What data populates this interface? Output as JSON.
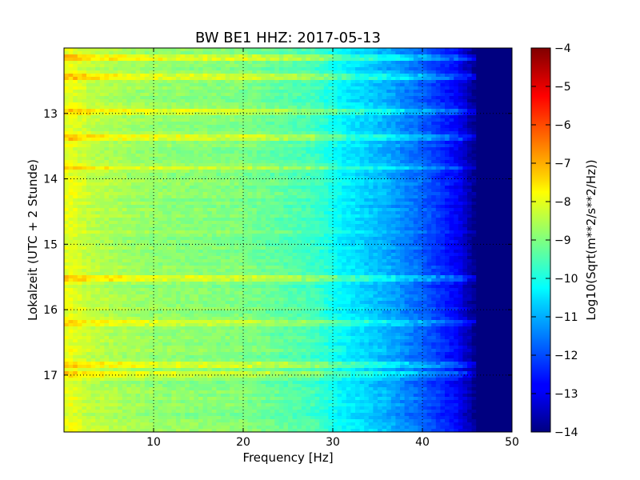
{
  "chart_data": {
    "type": "heatmap",
    "title": "BW BE1 HHZ: 2017-05-13",
    "xlabel": "Frequency [Hz]",
    "ylabel": "Lokalzeit (UTC + 2 Stunde)",
    "colorbar_label": "Log10(Sqrt(m**2/s**2/Hz))",
    "xlim": [
      0,
      50
    ],
    "ylim": [
      12.0,
      17.87
    ],
    "y_inverted": true,
    "xticks": [
      10,
      20,
      30,
      40,
      50
    ],
    "yticks": [
      13,
      14,
      15,
      16,
      17
    ],
    "colorbar_range": [
      -14,
      -4
    ],
    "colorbar_ticks": [
      -4,
      -5,
      -6,
      -7,
      -8,
      -9,
      -10,
      -11,
      -12,
      -13,
      -14
    ],
    "colormap": "jet",
    "grid": true,
    "typical_levels": [
      {
        "frequency": 1,
        "value": -8.0
      },
      {
        "frequency": 3,
        "value": -8.4
      },
      {
        "frequency": 10,
        "value": -8.8
      },
      {
        "frequency": 20,
        "value": -9.0
      },
      {
        "frequency": 28,
        "value": -9.6
      },
      {
        "frequency": 31,
        "value": -10.3
      },
      {
        "frequency": 36,
        "value": -11.0
      },
      {
        "frequency": 40,
        "value": -11.8
      },
      {
        "frequency": 44,
        "value": -12.8
      },
      {
        "frequency": 46,
        "value": -14.0
      },
      {
        "frequency": 50,
        "value": -14.0
      }
    ],
    "strong_bands": [
      12.13,
      12.43,
      12.98,
      13.38,
      13.83,
      15.53,
      16.22,
      16.83,
      16.98
    ]
  }
}
